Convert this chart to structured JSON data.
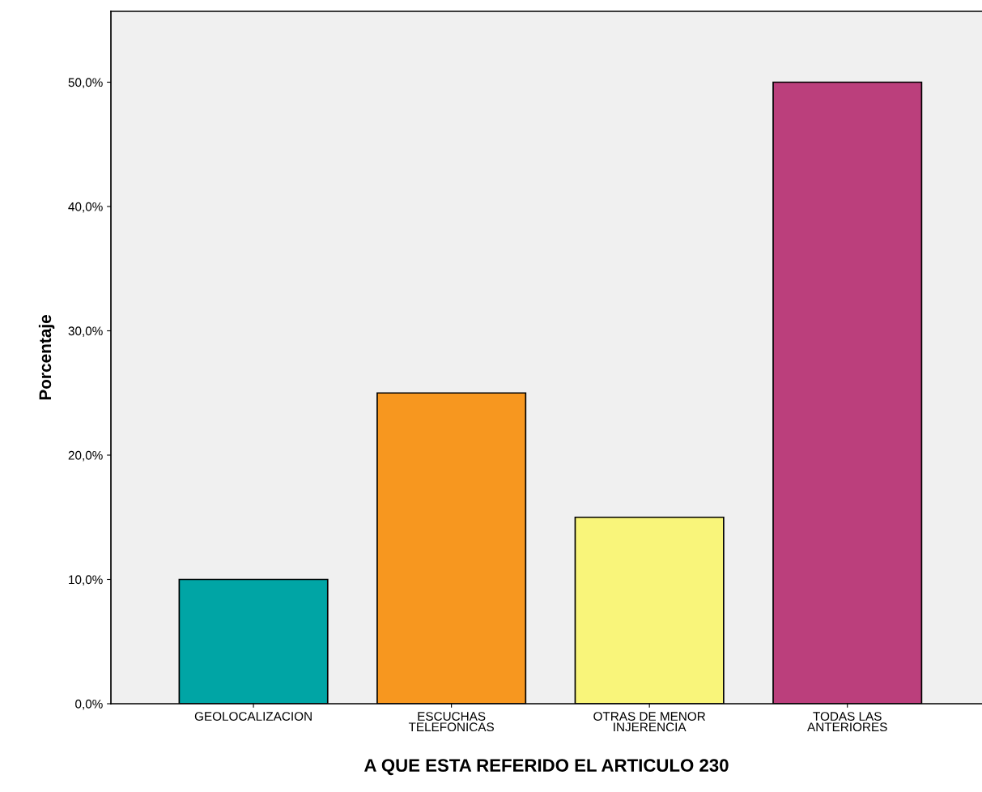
{
  "chart_data": {
    "type": "bar",
    "xlabel": "A QUE ESTA REFERIDO EL ARTICULO 230",
    "ylabel": "Porcentaje",
    "categories": [
      "GEOLOCALIZACION",
      "ESCUCHAS\nTELEFONICAS",
      "OTRAS DE MENOR\nINJERENCIA",
      "TODAS LAS\nANTERIORES"
    ],
    "values": [
      10,
      25,
      15,
      50
    ],
    "colors": [
      "#00a5a5",
      "#f7971f",
      "#f9f57a",
      "#bb3f7c"
    ],
    "ylim": [
      0,
      55.7
    ],
    "yticks": [
      {
        "value": 0,
        "label": "0,0%"
      },
      {
        "value": 10,
        "label": "10,0%"
      },
      {
        "value": 20,
        "label": "20,0%"
      },
      {
        "value": 30,
        "label": "30,0%"
      },
      {
        "value": 40,
        "label": "40,0%"
      },
      {
        "value": 50,
        "label": "50,0%"
      }
    ],
    "grid": false,
    "legend": false
  }
}
